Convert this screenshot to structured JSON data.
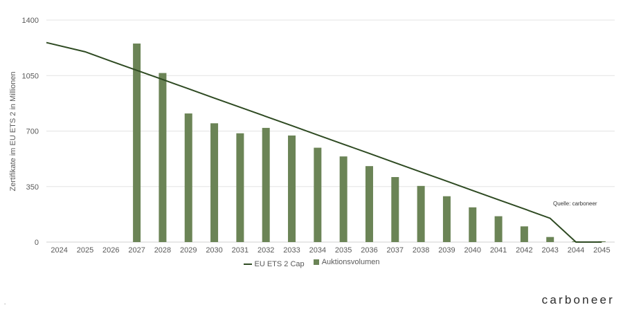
{
  "chart_data": {
    "type": "bar",
    "ylabel": "Zertifikate im EU  ETS 2 in Millionen",
    "ylim": [
      0,
      1400
    ],
    "yticks": [
      "0",
      "350",
      "700",
      "1050",
      "1400"
    ],
    "grid": true,
    "legend_position": "bottom",
    "categories": [
      "2024",
      "2025",
      "2026",
      "2027",
      "2028",
      "2029",
      "2030",
      "2031",
      "2032",
      "2033",
      "2034",
      "2035",
      "2036",
      "2037",
      "2038",
      "2039",
      "2040",
      "2041",
      "2042",
      "2043",
      "2044",
      "2045"
    ],
    "series": [
      {
        "name": "EU ETS 2 Cap",
        "kind": "line",
        "color": "#2e4a22",
        "values": [
          1258,
          1200,
          1141,
          1083,
          1025,
          967,
          908,
          850,
          792,
          734,
          675,
          617,
          559,
          500,
          442,
          384,
          325,
          267,
          209,
          150,
          0,
          0
        ]
      },
      {
        "name": "Auktionsvolumen",
        "kind": "bar",
        "color": "#6b8456",
        "values": [
          0,
          0,
          0,
          1252,
          1066,
          811,
          749,
          686,
          720,
          672,
          595,
          540,
          479,
          410,
          354,
          289,
          219,
          163,
          99,
          32,
          5,
          5
        ]
      }
    ]
  },
  "source_note": "Quelle: carboneer",
  "brand": "carboneer",
  "corner_mark": "."
}
